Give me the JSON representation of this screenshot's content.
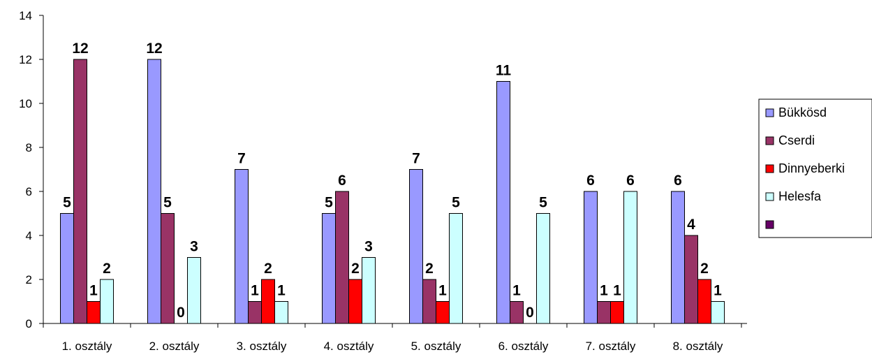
{
  "chart_data": {
    "type": "bar",
    "categories": [
      "1. osztály",
      "2. osztály",
      "3. osztály",
      "4. osztály",
      "5. osztály",
      "6. osztály",
      "7. osztály",
      "8. osztály"
    ],
    "series": [
      {
        "name": "Bükkösd",
        "color": "#9999ff",
        "values": [
          5,
          12,
          7,
          5,
          7,
          11,
          6,
          6
        ]
      },
      {
        "name": "Cserdi",
        "color": "#993366",
        "values": [
          12,
          5,
          1,
          6,
          2,
          1,
          1,
          4
        ]
      },
      {
        "name": "Dinnyeberki",
        "color": "#ff0000",
        "values": [
          1,
          0,
          2,
          2,
          1,
          0,
          1,
          2
        ]
      },
      {
        "name": "Helesfa",
        "color": "#ccffff",
        "values": [
          2,
          3,
          1,
          3,
          5,
          5,
          6,
          1
        ]
      },
      {
        "name": "",
        "color": "#660066",
        "values": [
          null,
          null,
          null,
          null,
          null,
          null,
          null,
          null
        ]
      }
    ],
    "ylim": [
      0,
      14
    ],
    "yticks": [
      0,
      2,
      4,
      6,
      8,
      10,
      12,
      14
    ],
    "xlabel": "",
    "ylabel": "",
    "title": "",
    "grid": false,
    "legend_position": "right"
  }
}
